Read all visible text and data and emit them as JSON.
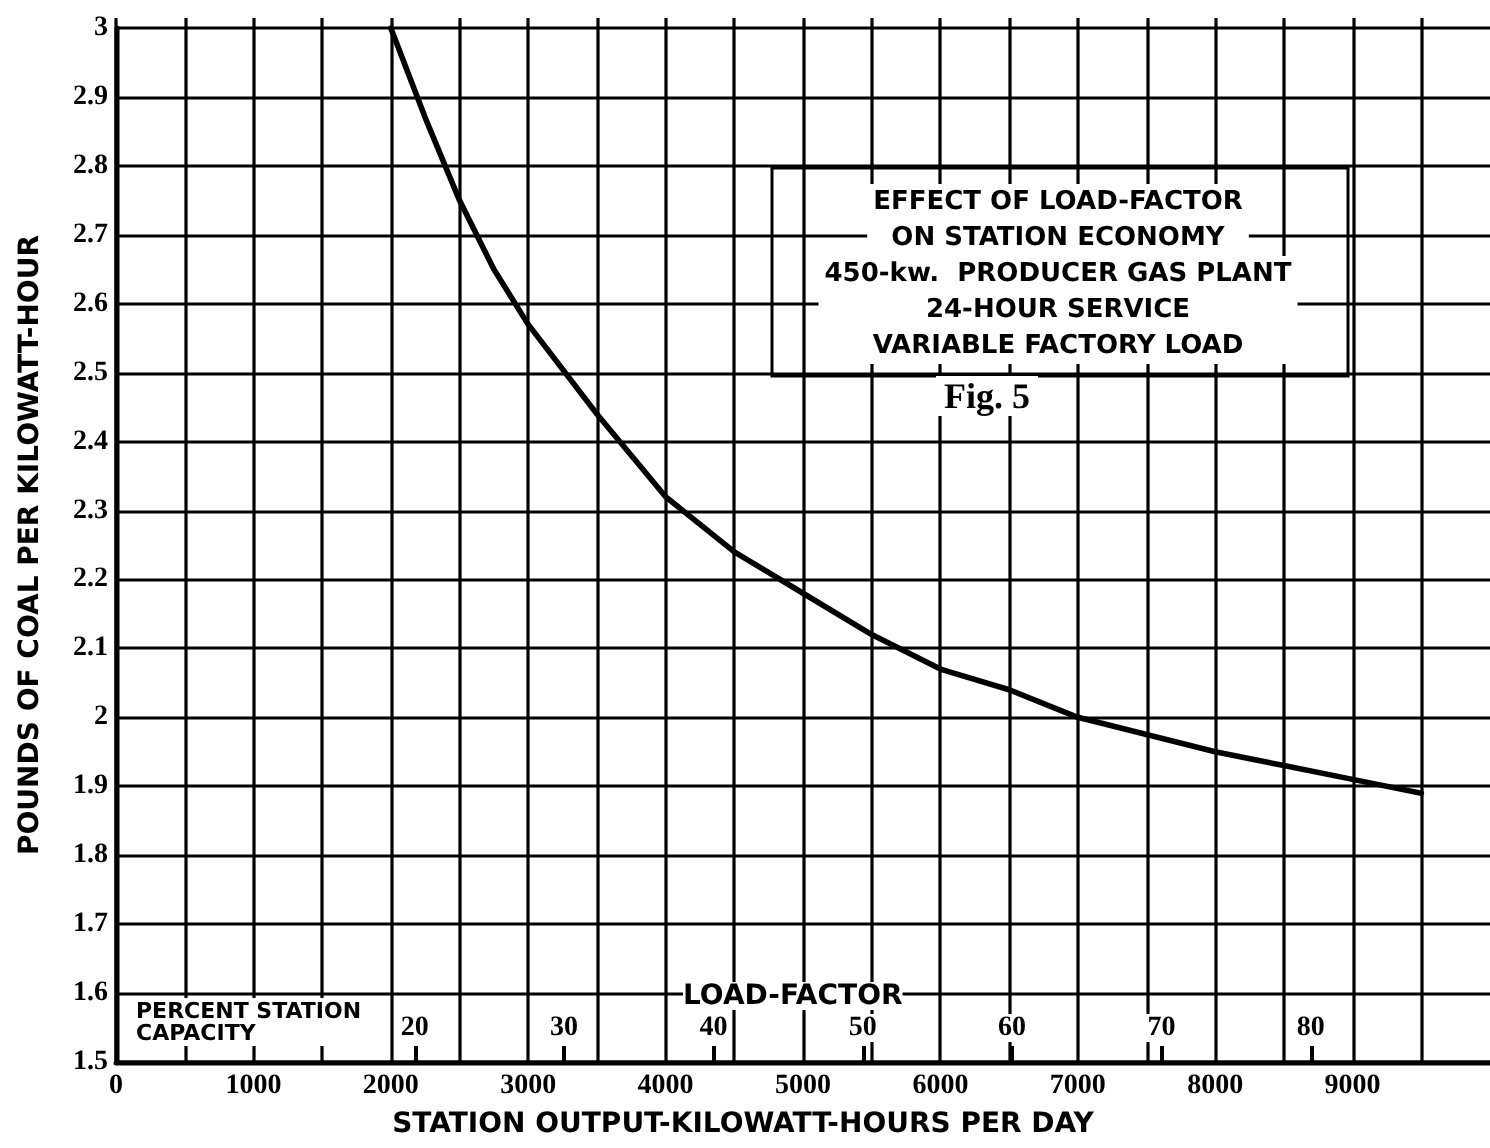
{
  "chart_data": {
    "type": "line",
    "title": "EFFECT OF LOAD-FACTOR\nON STATION ECONOMY",
    "subtitle": "450-kw.  PRODUCER GAS PLANT\n24-HOUR SERVICE\nVARIABLE FACTORY LOAD",
    "xlabel": "STATION OUTPUT-KILOWATT-HOURS PER DAY",
    "ylabel": "POUNDS OF COAL PER KILOWATT-HOUR",
    "x2label": "LOAD-FACTOR",
    "annotations": [
      "Fig. 5",
      "PERCENT STATION CAPACITY"
    ],
    "series": [
      {
        "color": "#000000",
        "x": [
          2000,
          2250,
          2500,
          2750,
          3000,
          3500,
          4000,
          4500,
          5000,
          5500,
          6000,
          6500,
          7000,
          7500,
          8000,
          8500,
          9000,
          9500
        ],
        "values": [
          3.0,
          2.87,
          2.75,
          2.65,
          2.57,
          2.44,
          2.32,
          2.24,
          2.18,
          2.12,
          2.07,
          2.04,
          2.0,
          1.975,
          1.95,
          1.93,
          1.91,
          1.89
        ]
      }
    ],
    "xlim": [
      0,
      10000
    ],
    "xticks": [
      0,
      {
        "value": 500,
        "label": null
      },
      1000,
      {
        "value": 1500,
        "label": null
      },
      2000,
      {
        "value": 2500,
        "label": null
      },
      3000,
      {
        "value": 3500,
        "label": null
      },
      4000,
      {
        "value": 4500,
        "label": null
      },
      5000,
      {
        "value": 5500,
        "label": null
      },
      6000,
      {
        "value": 6500,
        "label": null
      },
      7000,
      {
        "value": 7500,
        "label": null
      },
      8000,
      {
        "value": 8500,
        "label": null
      },
      9000,
      {
        "value": 9500,
        "label": null
      }
    ],
    "ylim": [
      1.5,
      3.0
    ],
    "yticks": [
      1.5,
      1.6,
      1.7,
      1.8,
      1.9,
      2.0,
      2.1,
      2.2,
      2.3,
      2.4,
      2.5,
      2.6,
      2.7,
      2.8,
      2.9,
      3.0
    ],
    "x2lim": [
      0,
      92
    ],
    "x2ticks": [
      20,
      30,
      40,
      50,
      60,
      70,
      80
    ],
    "grid": true,
    "marker": "none",
    "line_style": "solid"
  }
}
